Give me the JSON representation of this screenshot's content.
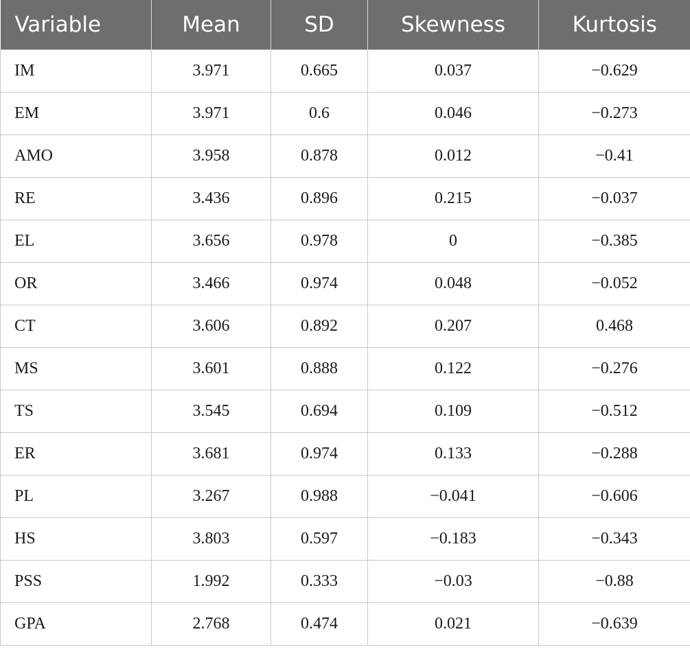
{
  "table": {
    "headers": [
      "Variable",
      "Mean",
      "SD",
      "Skewness",
      "Kurtosis"
    ],
    "rows": [
      [
        "IM",
        "3.971",
        "0.665",
        "0.037",
        "−0.629"
      ],
      [
        "EM",
        "3.971",
        "0.6",
        "0.046",
        "−0.273"
      ],
      [
        "AMO",
        "3.958",
        "0.878",
        "0.012",
        "−0.41"
      ],
      [
        "RE",
        "3.436",
        "0.896",
        "0.215",
        "−0.037"
      ],
      [
        "EL",
        "3.656",
        "0.978",
        "0",
        "−0.385"
      ],
      [
        "OR",
        "3.466",
        "0.974",
        "0.048",
        "−0.052"
      ],
      [
        "CT",
        "3.606",
        "0.892",
        "0.207",
        "0.468"
      ],
      [
        "MS",
        "3.601",
        "0.888",
        "0.122",
        "−0.276"
      ],
      [
        "TS",
        "3.545",
        "0.694",
        "0.109",
        "−0.512"
      ],
      [
        "ER",
        "3.681",
        "0.974",
        "0.133",
        "−0.288"
      ],
      [
        "PL",
        "3.267",
        "0.988",
        "−0.041",
        "−0.606"
      ],
      [
        "HS",
        "3.803",
        "0.597",
        "−0.183",
        "−0.343"
      ],
      [
        "PSS",
        "1.992",
        "0.333",
        "−0.03",
        "−0.88"
      ],
      [
        "GPA",
        "2.768",
        "0.474",
        "0.021",
        "−0.639"
      ]
    ]
  },
  "colors": {
    "header_bg": "#6d6e70",
    "header_text": "#ffffff",
    "grid": "#c9c9c9"
  }
}
